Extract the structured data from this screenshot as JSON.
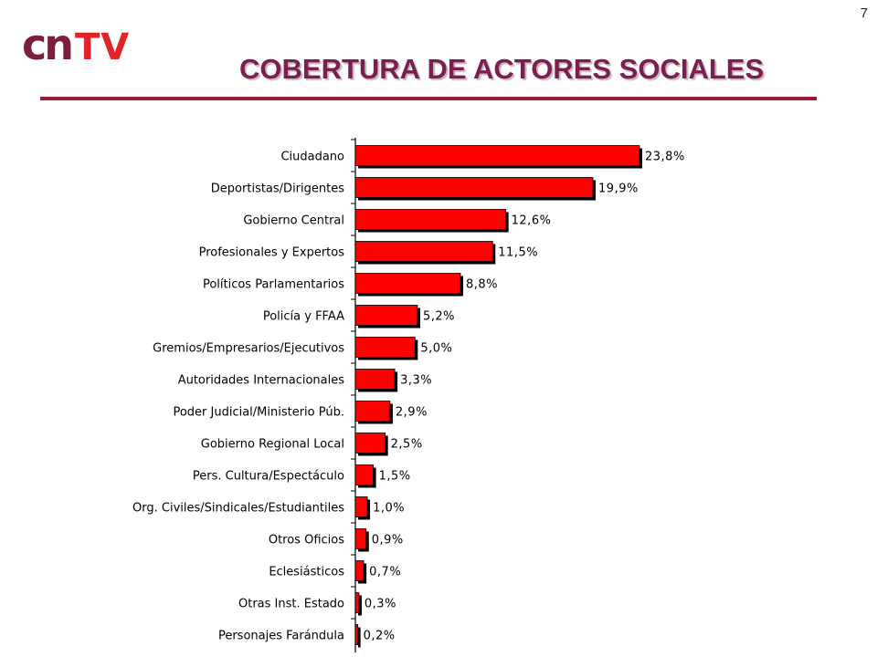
{
  "page_number": "7",
  "logo": {
    "cn": "cn",
    "tv": "TV"
  },
  "title": "COBERTURA DE ACTORES SOCIALES",
  "colors": {
    "bar": "#ff0000",
    "bar_shadow": "#000000",
    "title": "#7a1f4f",
    "rule": "#9b1b2e"
  },
  "chart_data": {
    "type": "bar",
    "orientation": "horizontal",
    "title": "COBERTURA DE ACTORES SOCIALES",
    "categories": [
      "Ciudadano",
      "Deportistas/Dirigentes",
      "Gobierno Central",
      "Profesionales y Expertos",
      "Políticos Parlamentarios",
      "Policía y FFAA",
      "Gremios/Empresarios/Ejecutivos",
      "Autoridades Internacionales",
      "Poder Judicial/Ministerio Púb.",
      "Gobierno Regional Local",
      "Pers. Cultura/Espectáculo",
      "Org. Civiles/Sindicales/Estudiantiles",
      "Otros Oficios",
      "Eclesiásticos",
      "Otras Inst. Estado",
      "Personajes Farándula"
    ],
    "values": [
      23.8,
      19.9,
      12.6,
      11.5,
      8.8,
      5.2,
      5.0,
      3.3,
      2.9,
      2.5,
      1.5,
      1.0,
      0.9,
      0.7,
      0.3,
      0.2
    ],
    "labels": [
      "23,8%",
      "19,9%",
      "12,6%",
      "11,5%",
      "8,8%",
      "5,2%",
      "5,0%",
      "3,3%",
      "2,9%",
      "2,5%",
      "1,5%",
      "1,0%",
      "0,9%",
      "0,7%",
      "0,3%",
      "0,2%"
    ],
    "xlabel": "",
    "ylabel": "",
    "xlim": [
      0,
      25
    ],
    "grid": false,
    "legend": "none"
  }
}
